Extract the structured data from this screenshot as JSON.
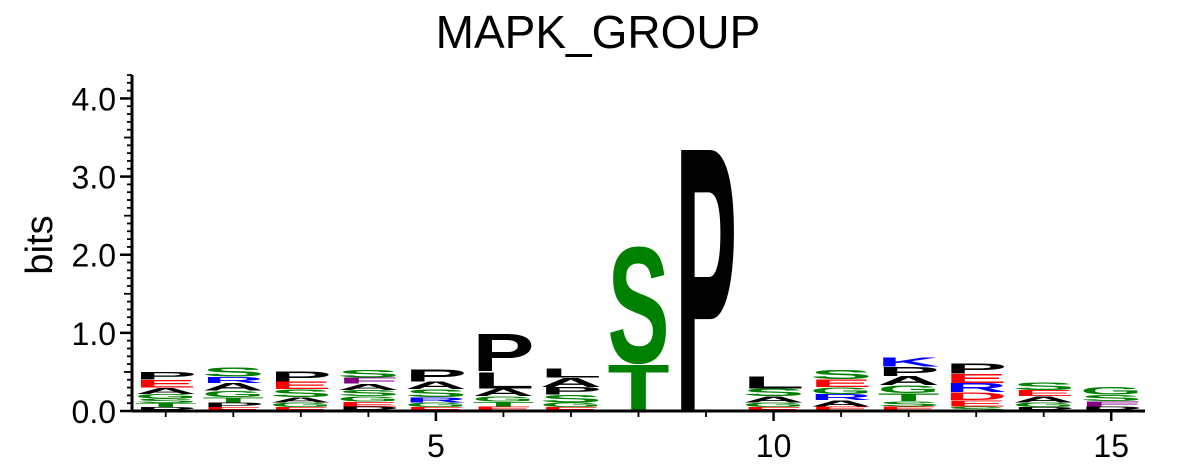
{
  "chart_data": {
    "type": "sequence-logo",
    "title": "MAPK_GROUP",
    "ylabel": "bits",
    "xlabel": "",
    "ylim": [
      0,
      4.3
    ],
    "y_ticks": [
      {
        "value": 0,
        "label": "0.0"
      },
      {
        "value": 1,
        "label": "1.0"
      },
      {
        "value": 2,
        "label": "2.0"
      },
      {
        "value": 3,
        "label": "3.0"
      },
      {
        "value": 4,
        "label": "4.0"
      }
    ],
    "x_ticks": [
      {
        "value": 5,
        "label": "5"
      },
      {
        "value": 10,
        "label": "10"
      },
      {
        "value": 15,
        "label": "15"
      }
    ],
    "xlim": [
      0.5,
      15.5
    ],
    "colors": {
      "P": "#000000",
      "L": "#000000",
      "A": "#000000",
      "V": "#000000",
      "M": "#000000",
      "I": "#000000",
      "S": "#008000",
      "T": "#008000",
      "G": "#008000",
      "Y": "#008000",
      "Q": "#008000",
      "N": "#008000",
      "K": "#0000ff",
      "R": "#0000ff",
      "H": "#0000ff",
      "E": "#ff0000",
      "D": "#ff0000",
      "F": "#800080",
      "W": "#800080",
      "C": "#800080"
    },
    "positions": [
      {
        "pos": 1,
        "letters": [
          [
            "P",
            0.05
          ],
          [
            "T",
            0.05
          ],
          [
            "S",
            0.06
          ],
          [
            "G",
            0.06
          ],
          [
            "A",
            0.08
          ],
          [
            "E",
            0.1
          ],
          [
            "P",
            0.1
          ]
        ]
      },
      {
        "pos": 2,
        "letters": [
          [
            "E",
            0.05
          ],
          [
            "P",
            0.06
          ],
          [
            "T",
            0.07
          ],
          [
            "G",
            0.08
          ],
          [
            "A",
            0.1
          ],
          [
            "R",
            0.08
          ],
          [
            "S",
            0.12
          ]
        ]
      },
      {
        "pos": 3,
        "letters": [
          [
            "E",
            0.05
          ],
          [
            "G",
            0.06
          ],
          [
            "A",
            0.07
          ],
          [
            "S",
            0.1
          ],
          [
            "E",
            0.1
          ],
          [
            "P",
            0.14
          ]
        ]
      },
      {
        "pos": 4,
        "letters": [
          [
            "P",
            0.06
          ],
          [
            "E",
            0.06
          ],
          [
            "G",
            0.07
          ],
          [
            "S",
            0.08
          ],
          [
            "A",
            0.08
          ],
          [
            "F",
            0.08
          ],
          [
            "S",
            0.1
          ]
        ]
      },
      {
        "pos": 5,
        "letters": [
          [
            "E",
            0.05
          ],
          [
            "G",
            0.06
          ],
          [
            "R",
            0.07
          ],
          [
            "S",
            0.1
          ],
          [
            "A",
            0.1
          ],
          [
            "P",
            0.16
          ]
        ]
      },
      {
        "pos": 6,
        "letters": [
          [
            "E",
            0.06
          ],
          [
            "T",
            0.06
          ],
          [
            "G",
            0.07
          ],
          [
            "A",
            0.1
          ],
          [
            "L",
            0.22
          ],
          [
            "P",
            0.5
          ]
        ]
      },
      {
        "pos": 7,
        "letters": [
          [
            "E",
            0.05
          ],
          [
            "G",
            0.06
          ],
          [
            "S",
            0.1
          ],
          [
            "P",
            0.1
          ],
          [
            "A",
            0.12
          ],
          [
            "L",
            0.12
          ]
        ]
      },
      {
        "pos": 8,
        "letters": [
          [
            "T",
            0.62
          ],
          [
            "S",
            1.55
          ]
        ]
      },
      {
        "pos": 9,
        "letters": [
          [
            "P",
            3.54
          ]
        ]
      },
      {
        "pos": 10,
        "letters": [
          [
            "E",
            0.05
          ],
          [
            "G",
            0.06
          ],
          [
            "A",
            0.08
          ],
          [
            "S",
            0.1
          ],
          [
            "L",
            0.16
          ]
        ]
      },
      {
        "pos": 11,
        "letters": [
          [
            "E",
            0.06
          ],
          [
            "A",
            0.08
          ],
          [
            "R",
            0.08
          ],
          [
            "G",
            0.09
          ],
          [
            "E",
            0.1
          ],
          [
            "S",
            0.12
          ]
        ]
      },
      {
        "pos": 12,
        "letters": [
          [
            "E",
            0.06
          ],
          [
            "S",
            0.07
          ],
          [
            "T",
            0.1
          ],
          [
            "G",
            0.1
          ],
          [
            "A",
            0.12
          ],
          [
            "P",
            0.12
          ],
          [
            "K",
            0.12
          ]
        ]
      },
      {
        "pos": 13,
        "letters": [
          [
            "S",
            0.06
          ],
          [
            "E",
            0.08
          ],
          [
            "D",
            0.1
          ],
          [
            "R",
            0.12
          ],
          [
            "E",
            0.12
          ],
          [
            "P",
            0.14
          ]
        ]
      },
      {
        "pos": 14,
        "letters": [
          [
            "P",
            0.05
          ],
          [
            "G",
            0.06
          ],
          [
            "A",
            0.08
          ],
          [
            "E",
            0.08
          ],
          [
            "S",
            0.1
          ]
        ]
      },
      {
        "pos": 15,
        "letters": [
          [
            "P",
            0.06
          ],
          [
            "F",
            0.07
          ],
          [
            "S",
            0.08
          ],
          [
            "G",
            0.1
          ]
        ]
      }
    ]
  }
}
